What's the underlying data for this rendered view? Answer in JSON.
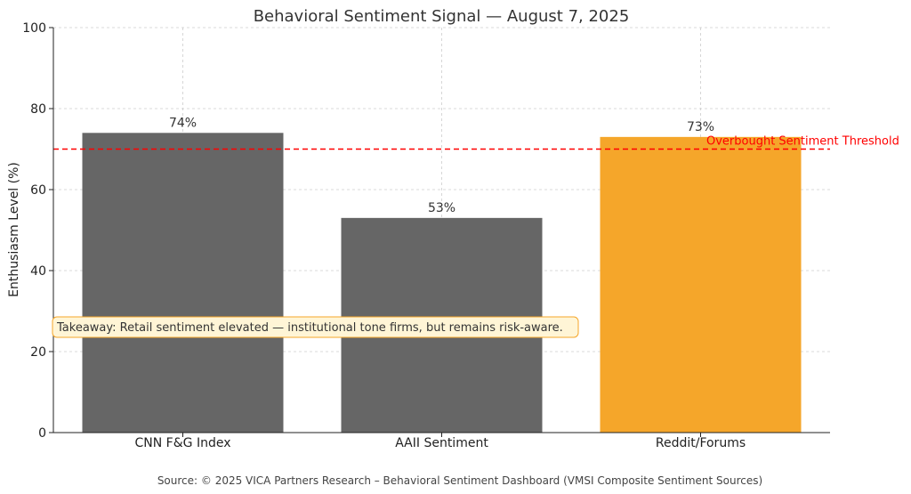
{
  "chart_data": {
    "type": "bar",
    "title": "Behavioral Sentiment Signal — August 7, 2025",
    "xlabel": "",
    "ylabel": "Enthusiasm Level (%)",
    "ylim": [
      0,
      100
    ],
    "yticks": [
      "0",
      "20",
      "40",
      "60",
      "80",
      "100"
    ],
    "categories": [
      "CNN F&G Index",
      "AAII Sentiment",
      "Reddit/Forums"
    ],
    "values": [
      74,
      53,
      73
    ],
    "value_labels": [
      "74%",
      "53%",
      "73%"
    ],
    "bar_colors": [
      "#666666",
      "#666666",
      "#f5a62a"
    ],
    "grid": true,
    "threshold": {
      "value": 70,
      "label": "Overbought Sentiment Threshold",
      "color": "#ff0000"
    },
    "annotation": "Takeaway: Retail sentiment elevated — institutional tone firms, but remains risk-aware.",
    "source": "Source: © 2025 VICA Partners Research – Behavioral Sentiment Dashboard (VMSI Composite Sentiment Sources)"
  }
}
